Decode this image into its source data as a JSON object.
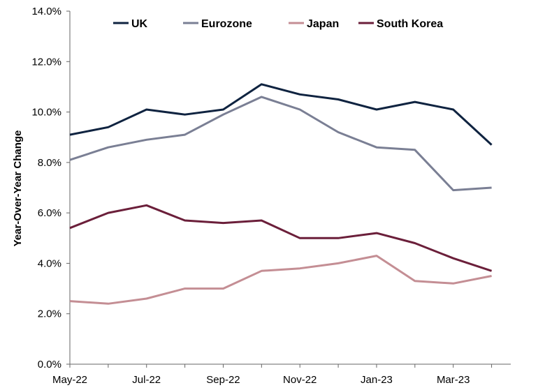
{
  "chart_data": {
    "type": "line",
    "title": "",
    "xlabel": "",
    "ylabel": "Year-Over-Year Change",
    "ylim": [
      0,
      14
    ],
    "y_tick_values": [
      0,
      2,
      4,
      6,
      8,
      10,
      12,
      14
    ],
    "y_tick_labels": [
      "0.0%",
      "2.0%",
      "4.0%",
      "6.0%",
      "8.0%",
      "10.0%",
      "12.0%",
      "14.0%"
    ],
    "x": [
      "May-22",
      "Jun-22",
      "Jul-22",
      "Aug-22",
      "Sep-22",
      "Oct-22",
      "Nov-22",
      "Dec-22",
      "Jan-23",
      "Feb-23",
      "Mar-23",
      "Apr-23"
    ],
    "x_tick_labels": [
      "May-22",
      "Jul-22",
      "Sep-22",
      "Nov-22",
      "Jan-23",
      "Mar-23"
    ],
    "grid": false,
    "legend": "top",
    "series": [
      {
        "name": "UK",
        "color": "#0f2340",
        "values": [
          9.1,
          9.4,
          10.1,
          9.9,
          10.1,
          11.1,
          10.7,
          10.5,
          10.1,
          10.4,
          10.1,
          8.7
        ]
      },
      {
        "name": "Eurozone",
        "color": "#7a7f94",
        "values": [
          8.1,
          8.6,
          8.9,
          9.1,
          9.9,
          10.6,
          10.1,
          9.2,
          8.6,
          8.5,
          6.9,
          7.0
        ]
      },
      {
        "name": "Japan",
        "color": "#c48e94",
        "values": [
          2.5,
          2.4,
          2.6,
          3.0,
          3.0,
          3.7,
          3.8,
          4.0,
          4.3,
          3.3,
          3.2,
          3.5
        ]
      },
      {
        "name": "South Korea",
        "color": "#6b1f3a",
        "values": [
          5.4,
          6.0,
          6.3,
          5.7,
          5.6,
          5.7,
          5.0,
          5.0,
          5.2,
          4.8,
          4.2,
          3.7
        ]
      }
    ]
  }
}
